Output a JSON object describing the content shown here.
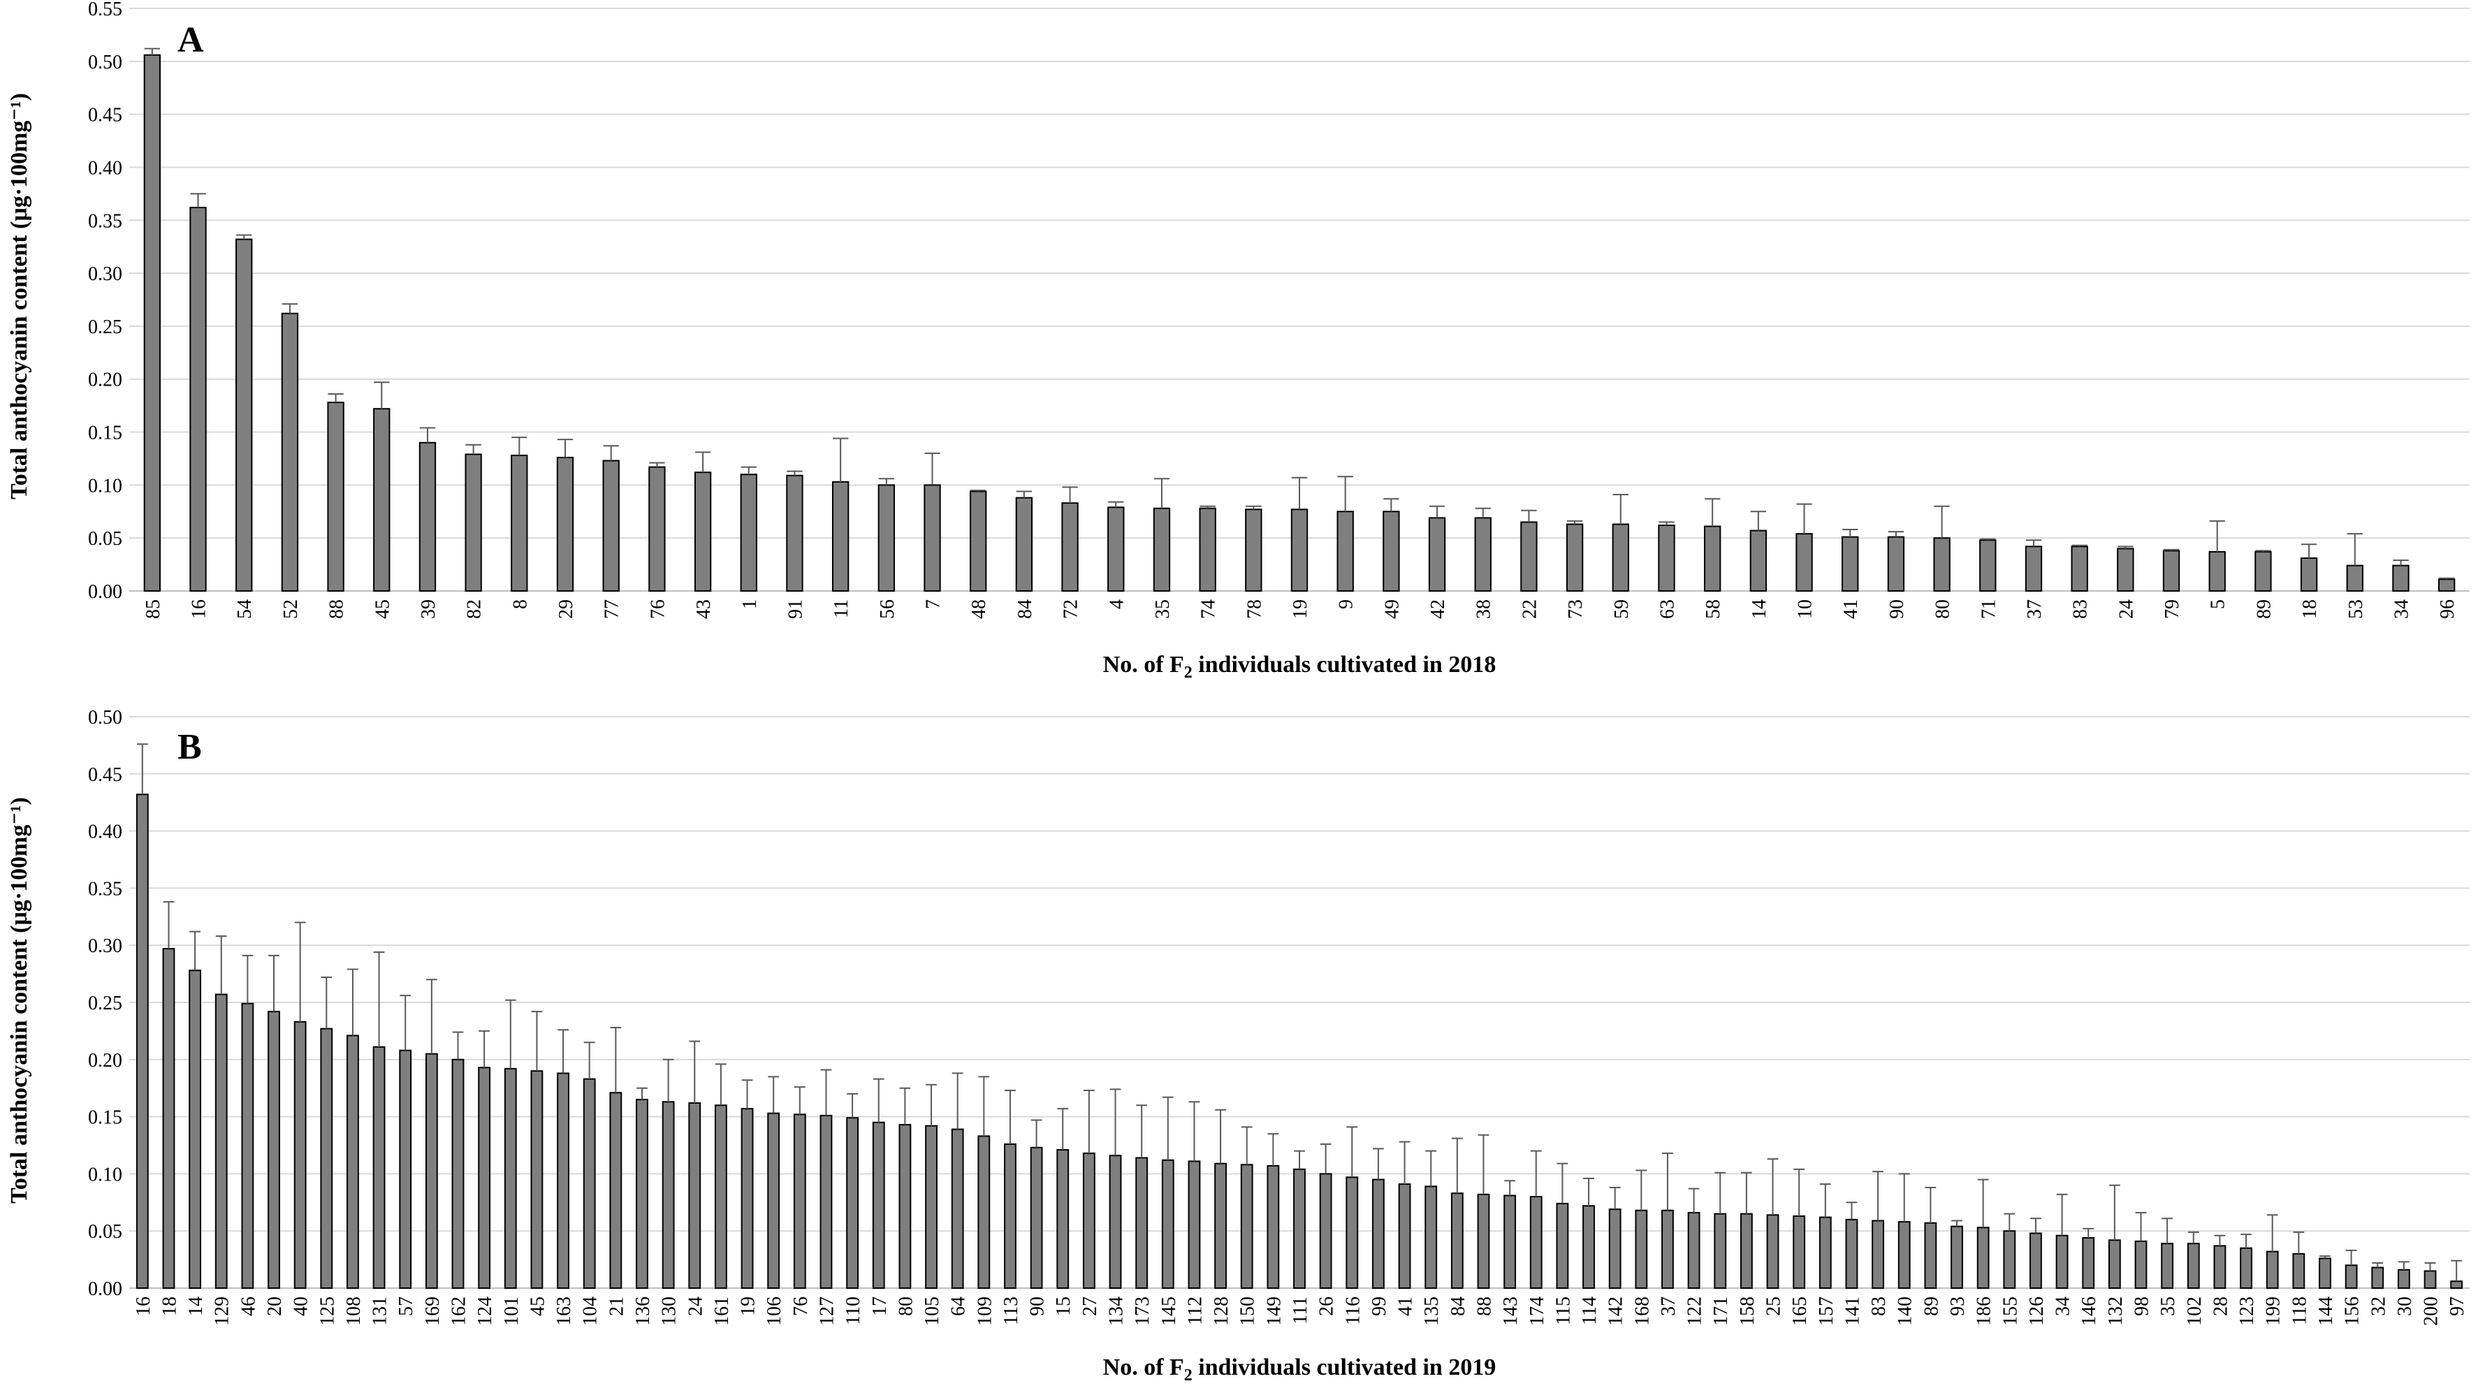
{
  "colors": {
    "bar_fill": "#7f7f7f",
    "bar_stroke": "#000000",
    "grid": "#d9d9d9",
    "error_bar": "#595959"
  },
  "chart_data": [
    {
      "type": "bar",
      "panel_label": "A",
      "xlabel": "No. of F2 individuals cultivated in 2018",
      "xlabel_main": "No. of F",
      "xlabel_sub": "2",
      "xlabel_rest": " individuals cultivated in 2018",
      "ylabel": "Total anthocyanin content (μg·100mg⁻¹)",
      "ylim": [
        0,
        0.55
      ],
      "yticks": [
        "0.00",
        "0.05",
        "0.10",
        "0.15",
        "0.20",
        "0.25",
        "0.30",
        "0.35",
        "0.40",
        "0.45",
        "0.50",
        "0.55"
      ],
      "grid": true,
      "categories": [
        "85",
        "16",
        "54",
        "52",
        "88",
        "45",
        "39",
        "82",
        "8",
        "29",
        "77",
        "76",
        "43",
        "1",
        "91",
        "11",
        "56",
        "7",
        "48",
        "84",
        "72",
        "4",
        "35",
        "74",
        "78",
        "19",
        "9",
        "49",
        "42",
        "38",
        "22",
        "73",
        "59",
        "63",
        "58",
        "14",
        "10",
        "41",
        "90",
        "80",
        "71",
        "37",
        "83",
        "24",
        "79",
        "5",
        "89",
        "18",
        "53",
        "34",
        "96"
      ],
      "values": [
        0.506,
        0.362,
        0.332,
        0.262,
        0.178,
        0.172,
        0.14,
        0.129,
        0.128,
        0.126,
        0.123,
        0.117,
        0.112,
        0.11,
        0.109,
        0.103,
        0.1,
        0.1,
        0.094,
        0.088,
        0.083,
        0.079,
        0.078,
        0.078,
        0.077,
        0.077,
        0.075,
        0.075,
        0.069,
        0.069,
        0.065,
        0.063,
        0.063,
        0.062,
        0.061,
        0.057,
        0.054,
        0.051,
        0.051,
        0.05,
        0.048,
        0.042,
        0.042,
        0.04,
        0.038,
        0.037,
        0.037,
        0.031,
        0.024,
        0.024,
        0.011
      ],
      "errors": [
        0.006,
        0.013,
        0.004,
        0.009,
        0.008,
        0.025,
        0.014,
        0.009,
        0.017,
        0.017,
        0.014,
        0.004,
        0.019,
        0.007,
        0.004,
        0.041,
        0.006,
        0.03,
        0.001,
        0.006,
        0.015,
        0.005,
        0.028,
        0.002,
        0.003,
        0.03,
        0.033,
        0.012,
        0.011,
        0.009,
        0.011,
        0.003,
        0.028,
        0.003,
        0.026,
        0.018,
        0.028,
        0.007,
        0.005,
        0.03,
        0.001,
        0.006,
        0.001,
        0.002,
        0.001,
        0.029,
        0.001,
        0.013,
        0.03,
        0.005,
        0.001
      ]
    },
    {
      "type": "bar",
      "panel_label": "B",
      "xlabel": "No. of F2 individuals cultivated in 2019",
      "xlabel_main": "No. of F",
      "xlabel_sub": "2",
      "xlabel_rest": " individuals cultivated in 2019",
      "ylabel": "Total anthocyanin content (μg·100mg⁻¹)",
      "ylim": [
        0,
        0.5
      ],
      "yticks": [
        "0.00",
        "0.05",
        "0.10",
        "0.15",
        "0.20",
        "0.25",
        "0.30",
        "0.35",
        "0.40",
        "0.45",
        "0.50"
      ],
      "grid": true,
      "categories": [
        "16",
        "18",
        "14",
        "129",
        "46",
        "20",
        "40",
        "125",
        "108",
        "131",
        "57",
        "169",
        "162",
        "124",
        "101",
        "45",
        "163",
        "104",
        "21",
        "136",
        "130",
        "24",
        "161",
        "19",
        "106",
        "76",
        "127",
        "110",
        "17",
        "80",
        "105",
        "64",
        "109",
        "113",
        "90",
        "15",
        "27",
        "134",
        "173",
        "145",
        "112",
        "128",
        "150",
        "149",
        "111",
        "26",
        "116",
        "99",
        "41",
        "135",
        "84",
        "88",
        "143",
        "174",
        "115",
        "114",
        "142",
        "168",
        "37",
        "122",
        "171",
        "158",
        "25",
        "165",
        "157",
        "141",
        "83",
        "140",
        "89",
        "93",
        "186",
        "155",
        "126",
        "34",
        "146",
        "132",
        "98",
        "35",
        "102",
        "28",
        "123",
        "199",
        "118",
        "144",
        "156",
        "32",
        "30",
        "200",
        "97"
      ],
      "values": [
        0.432,
        0.297,
        0.278,
        0.257,
        0.249,
        0.242,
        0.233,
        0.227,
        0.221,
        0.211,
        0.208,
        0.205,
        0.2,
        0.193,
        0.192,
        0.19,
        0.188,
        0.183,
        0.171,
        0.165,
        0.163,
        0.162,
        0.16,
        0.157,
        0.153,
        0.152,
        0.151,
        0.149,
        0.145,
        0.143,
        0.142,
        0.139,
        0.133,
        0.126,
        0.123,
        0.121,
        0.118,
        0.116,
        0.114,
        0.112,
        0.111,
        0.109,
        0.108,
        0.107,
        0.104,
        0.1,
        0.097,
        0.095,
        0.091,
        0.089,
        0.083,
        0.082,
        0.081,
        0.08,
        0.074,
        0.072,
        0.069,
        0.068,
        0.068,
        0.066,
        0.065,
        0.065,
        0.064,
        0.063,
        0.062,
        0.06,
        0.059,
        0.058,
        0.057,
        0.054,
        0.053,
        0.05,
        0.048,
        0.046,
        0.044,
        0.042,
        0.041,
        0.039,
        0.039,
        0.037,
        0.035,
        0.032,
        0.03,
        0.026,
        0.02,
        0.018,
        0.016,
        0.015,
        0.006
      ],
      "errors": [
        0.044,
        0.041,
        0.034,
        0.051,
        0.042,
        0.049,
        0.087,
        0.045,
        0.058,
        0.083,
        0.048,
        0.065,
        0.024,
        0.032,
        0.06,
        0.052,
        0.038,
        0.032,
        0.057,
        0.01,
        0.037,
        0.054,
        0.036,
        0.025,
        0.032,
        0.024,
        0.04,
        0.021,
        0.038,
        0.032,
        0.036,
        0.049,
        0.052,
        0.047,
        0.024,
        0.036,
        0.055,
        0.058,
        0.046,
        0.055,
        0.052,
        0.047,
        0.033,
        0.028,
        0.016,
        0.026,
        0.044,
        0.027,
        0.037,
        0.031,
        0.048,
        0.052,
        0.013,
        0.04,
        0.035,
        0.024,
        0.019,
        0.035,
        0.05,
        0.021,
        0.036,
        0.036,
        0.049,
        0.041,
        0.029,
        0.015,
        0.043,
        0.042,
        0.031,
        0.005,
        0.042,
        0.015,
        0.013,
        0.036,
        0.008,
        0.048,
        0.025,
        0.022,
        0.01,
        0.009,
        0.012,
        0.032,
        0.019,
        0.002,
        0.013,
        0.004,
        0.007,
        0.007,
        0.018
      ]
    }
  ]
}
